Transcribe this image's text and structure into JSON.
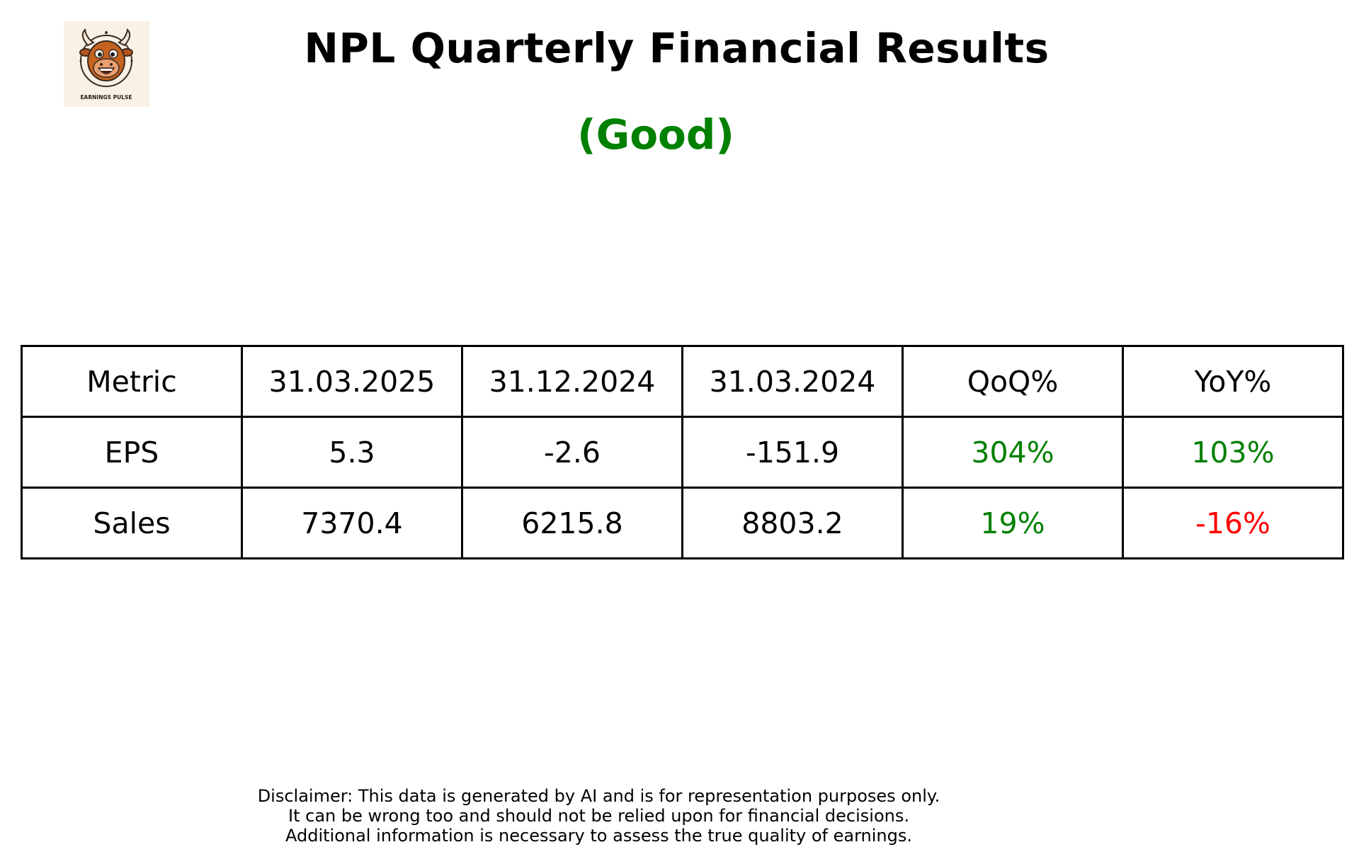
{
  "logo": {
    "icon": "bull-mascot-icon",
    "caption": "EARNINGS PULSE"
  },
  "title": "NPL Quarterly Financial Results",
  "verdict": {
    "label": "(Good)",
    "color": "#008000"
  },
  "chart_data": {
    "type": "table",
    "columns": [
      "Metric",
      "31.03.2025",
      "31.12.2024",
      "31.03.2024",
      "QoQ%",
      "YoY%"
    ],
    "rows": [
      {
        "metric": "EPS",
        "values": [
          "5.3",
          "-2.6",
          "-151.9"
        ],
        "qoq": "304%",
        "yoy": "103%",
        "qoq_color": "#008000",
        "yoy_color": "#008000"
      },
      {
        "metric": "Sales",
        "values": [
          "7370.4",
          "6215.8",
          "8803.2"
        ],
        "qoq": "19%",
        "yoy": "-16%",
        "qoq_color": "#008000",
        "yoy_color": "#ff0000"
      }
    ]
  },
  "disclaimer": {
    "line1": "Disclaimer: This data is generated by AI and is for representation purposes only.",
    "line2": "It can be wrong too and should not be relied upon for financial decisions.",
    "line3": "Additional information is necessary to assess the true quality of earnings."
  }
}
